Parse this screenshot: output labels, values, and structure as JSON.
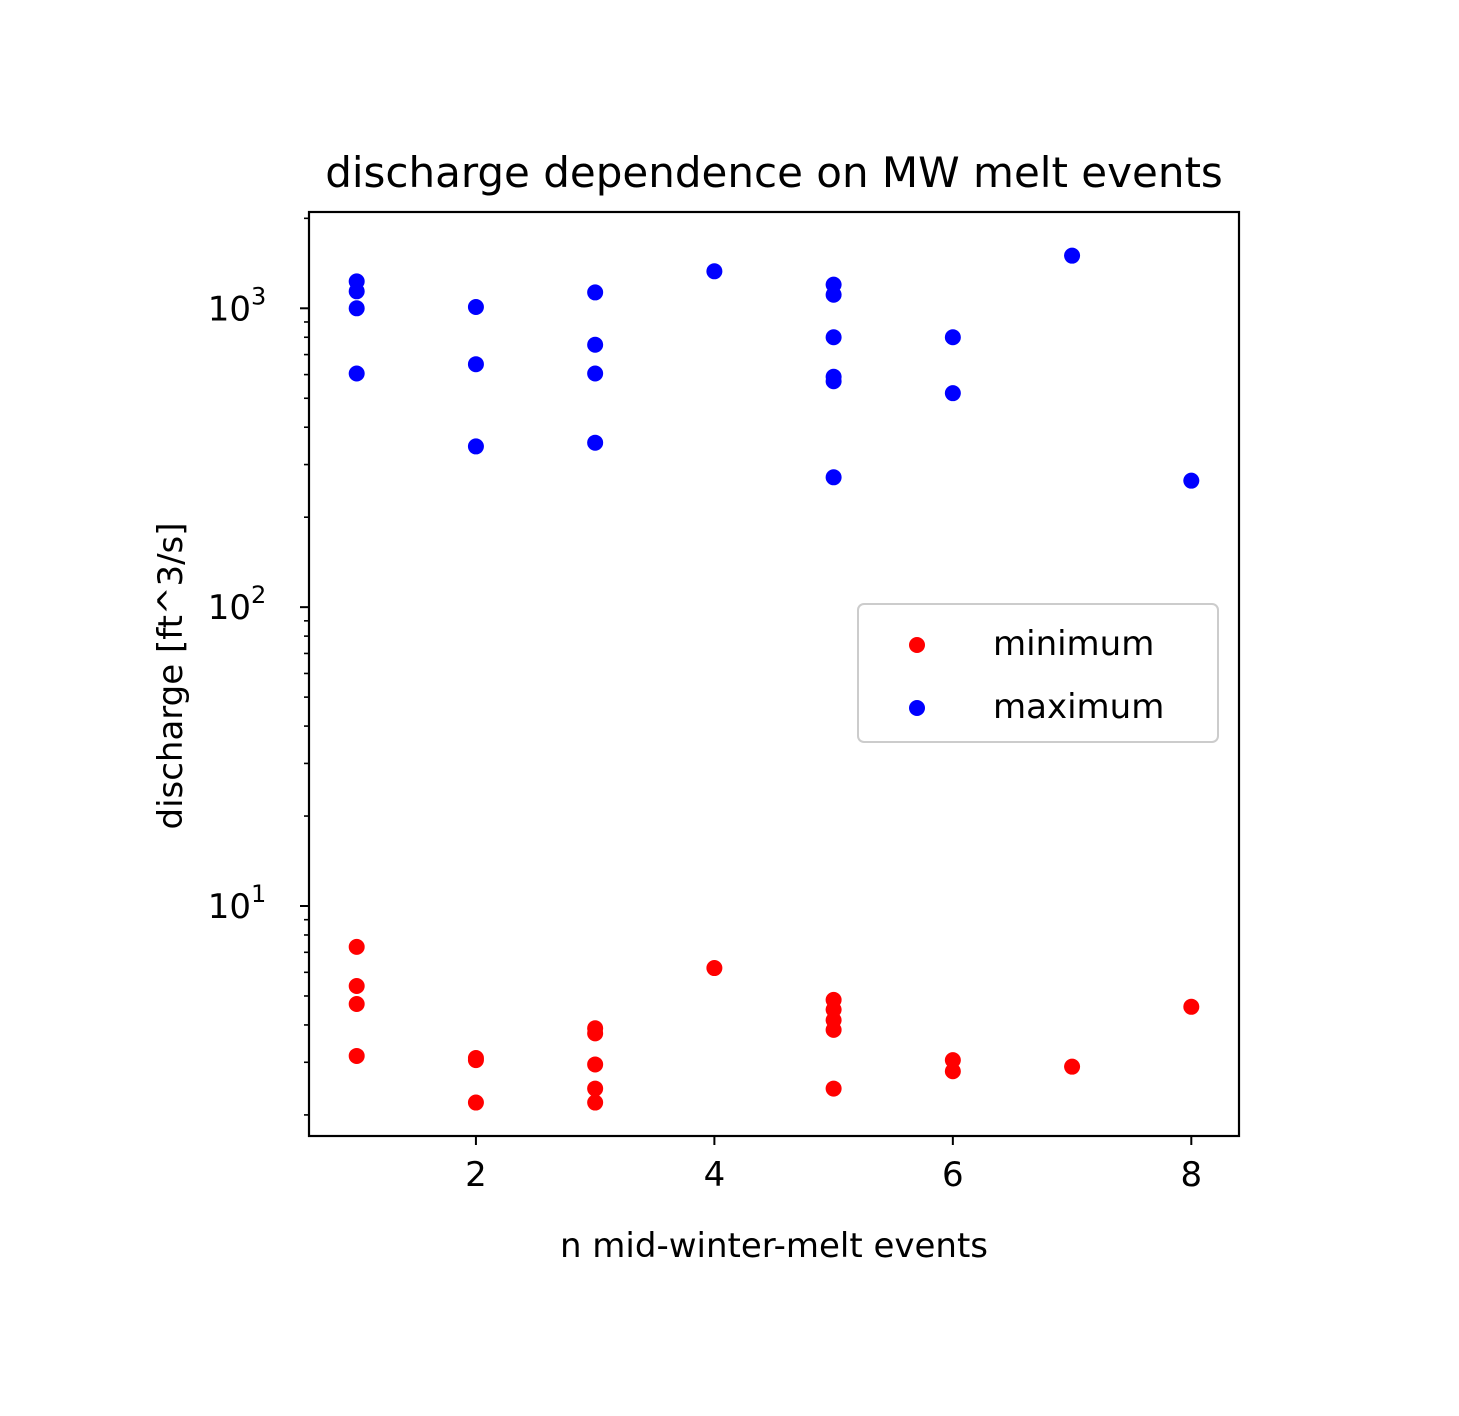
{
  "chart_data": {
    "type": "scatter",
    "title": "discharge dependence on MW melt events",
    "xlabel": "n mid-winter-melt events",
    "ylabel": "discharge [ft^3/s]",
    "xlim": [
      0.6,
      8.4
    ],
    "ylim": [
      1.7,
      2100
    ],
    "yscale": "log",
    "x_ticks": [
      2,
      4,
      6,
      8
    ],
    "y_ticks": [
      {
        "base": "10",
        "exp": "1",
        "value": 10
      },
      {
        "base": "10",
        "exp": "2",
        "value": 100
      },
      {
        "base": "10",
        "exp": "3",
        "value": 1000
      }
    ],
    "grid": false,
    "legend_position": "right",
    "series": [
      {
        "name": "minimum",
        "color": "#ff0000",
        "points": [
          {
            "x": 1,
            "y": 7.3
          },
          {
            "x": 1,
            "y": 5.4
          },
          {
            "x": 1,
            "y": 4.7
          },
          {
            "x": 1,
            "y": 3.15
          },
          {
            "x": 2,
            "y": 3.1
          },
          {
            "x": 2,
            "y": 3.05
          },
          {
            "x": 2,
            "y": 2.2
          },
          {
            "x": 3,
            "y": 3.9
          },
          {
            "x": 3,
            "y": 3.75
          },
          {
            "x": 3,
            "y": 2.95
          },
          {
            "x": 3,
            "y": 2.45
          },
          {
            "x": 3,
            "y": 2.2
          },
          {
            "x": 4,
            "y": 6.2
          },
          {
            "x": 5,
            "y": 4.85
          },
          {
            "x": 5,
            "y": 4.5
          },
          {
            "x": 5,
            "y": 4.15
          },
          {
            "x": 5,
            "y": 3.85
          },
          {
            "x": 5,
            "y": 2.45
          },
          {
            "x": 6,
            "y": 3.05
          },
          {
            "x": 6,
            "y": 2.8
          },
          {
            "x": 7,
            "y": 2.9
          },
          {
            "x": 8,
            "y": 4.6
          }
        ]
      },
      {
        "name": "maximum",
        "color": "#0000ff",
        "points": [
          {
            "x": 1,
            "y": 1230
          },
          {
            "x": 1,
            "y": 1140
          },
          {
            "x": 1,
            "y": 1000
          },
          {
            "x": 1,
            "y": 605
          },
          {
            "x": 2,
            "y": 1010
          },
          {
            "x": 2,
            "y": 650
          },
          {
            "x": 2,
            "y": 345
          },
          {
            "x": 3,
            "y": 1130
          },
          {
            "x": 3,
            "y": 755
          },
          {
            "x": 3,
            "y": 605
          },
          {
            "x": 3,
            "y": 355
          },
          {
            "x": 4,
            "y": 1330
          },
          {
            "x": 5,
            "y": 1200
          },
          {
            "x": 5,
            "y": 1110
          },
          {
            "x": 5,
            "y": 800
          },
          {
            "x": 5,
            "y": 590
          },
          {
            "x": 5,
            "y": 570
          },
          {
            "x": 5,
            "y": 272
          },
          {
            "x": 6,
            "y": 800
          },
          {
            "x": 6,
            "y": 520
          },
          {
            "x": 7,
            "y": 1500
          },
          {
            "x": 8,
            "y": 265
          }
        ]
      }
    ]
  }
}
